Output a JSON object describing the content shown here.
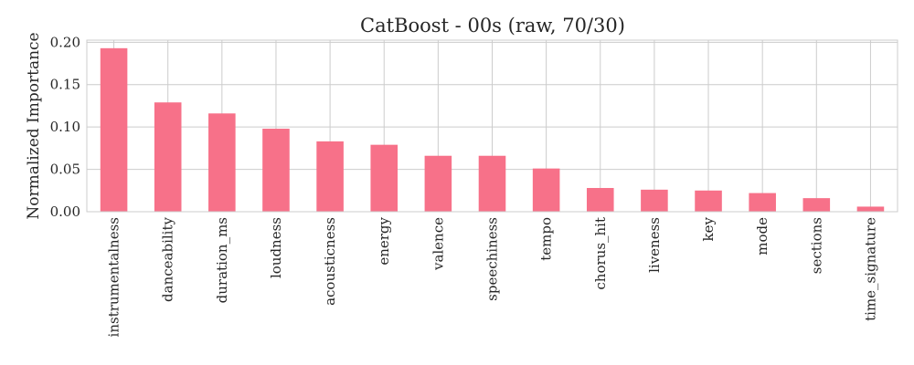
{
  "chart_data": {
    "type": "bar",
    "title": "CatBoost - 00s (raw, 70/30)",
    "xlabel": "",
    "ylabel": "Normalized Importance",
    "categories": [
      "instrumentalness",
      "danceability",
      "duration_ms",
      "loudness",
      "acousticness",
      "energy",
      "valence",
      "speechiness",
      "tempo",
      "chorus_hit",
      "liveness",
      "key",
      "mode",
      "sections",
      "time_signature"
    ],
    "values": [
      0.193,
      0.129,
      0.116,
      0.098,
      0.083,
      0.079,
      0.066,
      0.066,
      0.051,
      0.028,
      0.026,
      0.025,
      0.022,
      0.016,
      0.006
    ],
    "yticks": [
      0.0,
      0.05,
      0.1,
      0.15,
      0.2
    ],
    "ytick_labels": [
      "0.00",
      "0.05",
      "0.10",
      "0.15",
      "0.20"
    ],
    "ylim": [
      0,
      0.2025
    ],
    "grid": true,
    "bar_color": "#f77189",
    "grid_color": "#cccccc"
  }
}
